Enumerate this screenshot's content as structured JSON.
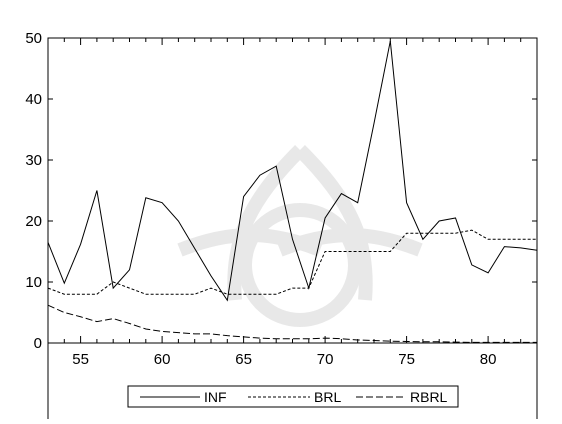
{
  "header_text": "",
  "chart_data": {
    "type": "line",
    "title": "",
    "xlabel": "",
    "ylabel": "",
    "xlim": [
      53,
      83
    ],
    "ylim": [
      0,
      50
    ],
    "x_ticks": [
      55,
      60,
      65,
      70,
      75,
      80
    ],
    "y_ticks": [
      0,
      10,
      20,
      30,
      40,
      50
    ],
    "grid": false,
    "legend_position": "bottom",
    "x": [
      53,
      54,
      55,
      56,
      57,
      58,
      59,
      60,
      61,
      62,
      63,
      64,
      65,
      66,
      67,
      68,
      69,
      70,
      71,
      72,
      73,
      74,
      75,
      76,
      77,
      78,
      79,
      80,
      81,
      82,
      83
    ],
    "series": [
      {
        "name": "INF",
        "dash": "solid",
        "values": [
          16.5,
          9.8,
          16.2,
          25.0,
          9.0,
          12.0,
          23.8,
          23.0,
          20.0,
          15.5,
          11.0,
          7.0,
          24.0,
          27.5,
          29.0,
          17.0,
          9.0,
          20.5,
          24.5,
          23.0,
          36.0,
          49.5,
          23.0,
          17.0,
          20.0,
          20.5,
          12.8,
          11.5,
          15.8,
          15.6,
          15.2
        ]
      },
      {
        "name": "BRL",
        "dash": "short",
        "values": [
          9.0,
          8.0,
          8.0,
          8.0,
          10.0,
          9.0,
          8.0,
          8.0,
          8.0,
          8.0,
          9.0,
          8.0,
          8.0,
          8.0,
          8.0,
          9.0,
          9.0,
          15.0,
          15.0,
          15.0,
          15.0,
          15.0,
          18.0,
          18.0,
          18.0,
          18.0,
          18.5,
          17.0,
          17.0,
          17.0,
          17.0
        ]
      },
      {
        "name": "RBRL",
        "dash": "long",
        "values": [
          6.2,
          5.0,
          4.3,
          3.5,
          4.0,
          3.2,
          2.3,
          1.9,
          1.7,
          1.5,
          1.5,
          1.2,
          1.0,
          0.8,
          0.7,
          0.7,
          0.7,
          0.8,
          0.7,
          0.5,
          0.4,
          0.3,
          0.25,
          0.2,
          0.2,
          0.15,
          0.1,
          0.1,
          0.1,
          0.1,
          0.1
        ]
      }
    ],
    "colors": {
      "line": "#000000",
      "frame": "#000000",
      "background": "#ffffff"
    }
  }
}
